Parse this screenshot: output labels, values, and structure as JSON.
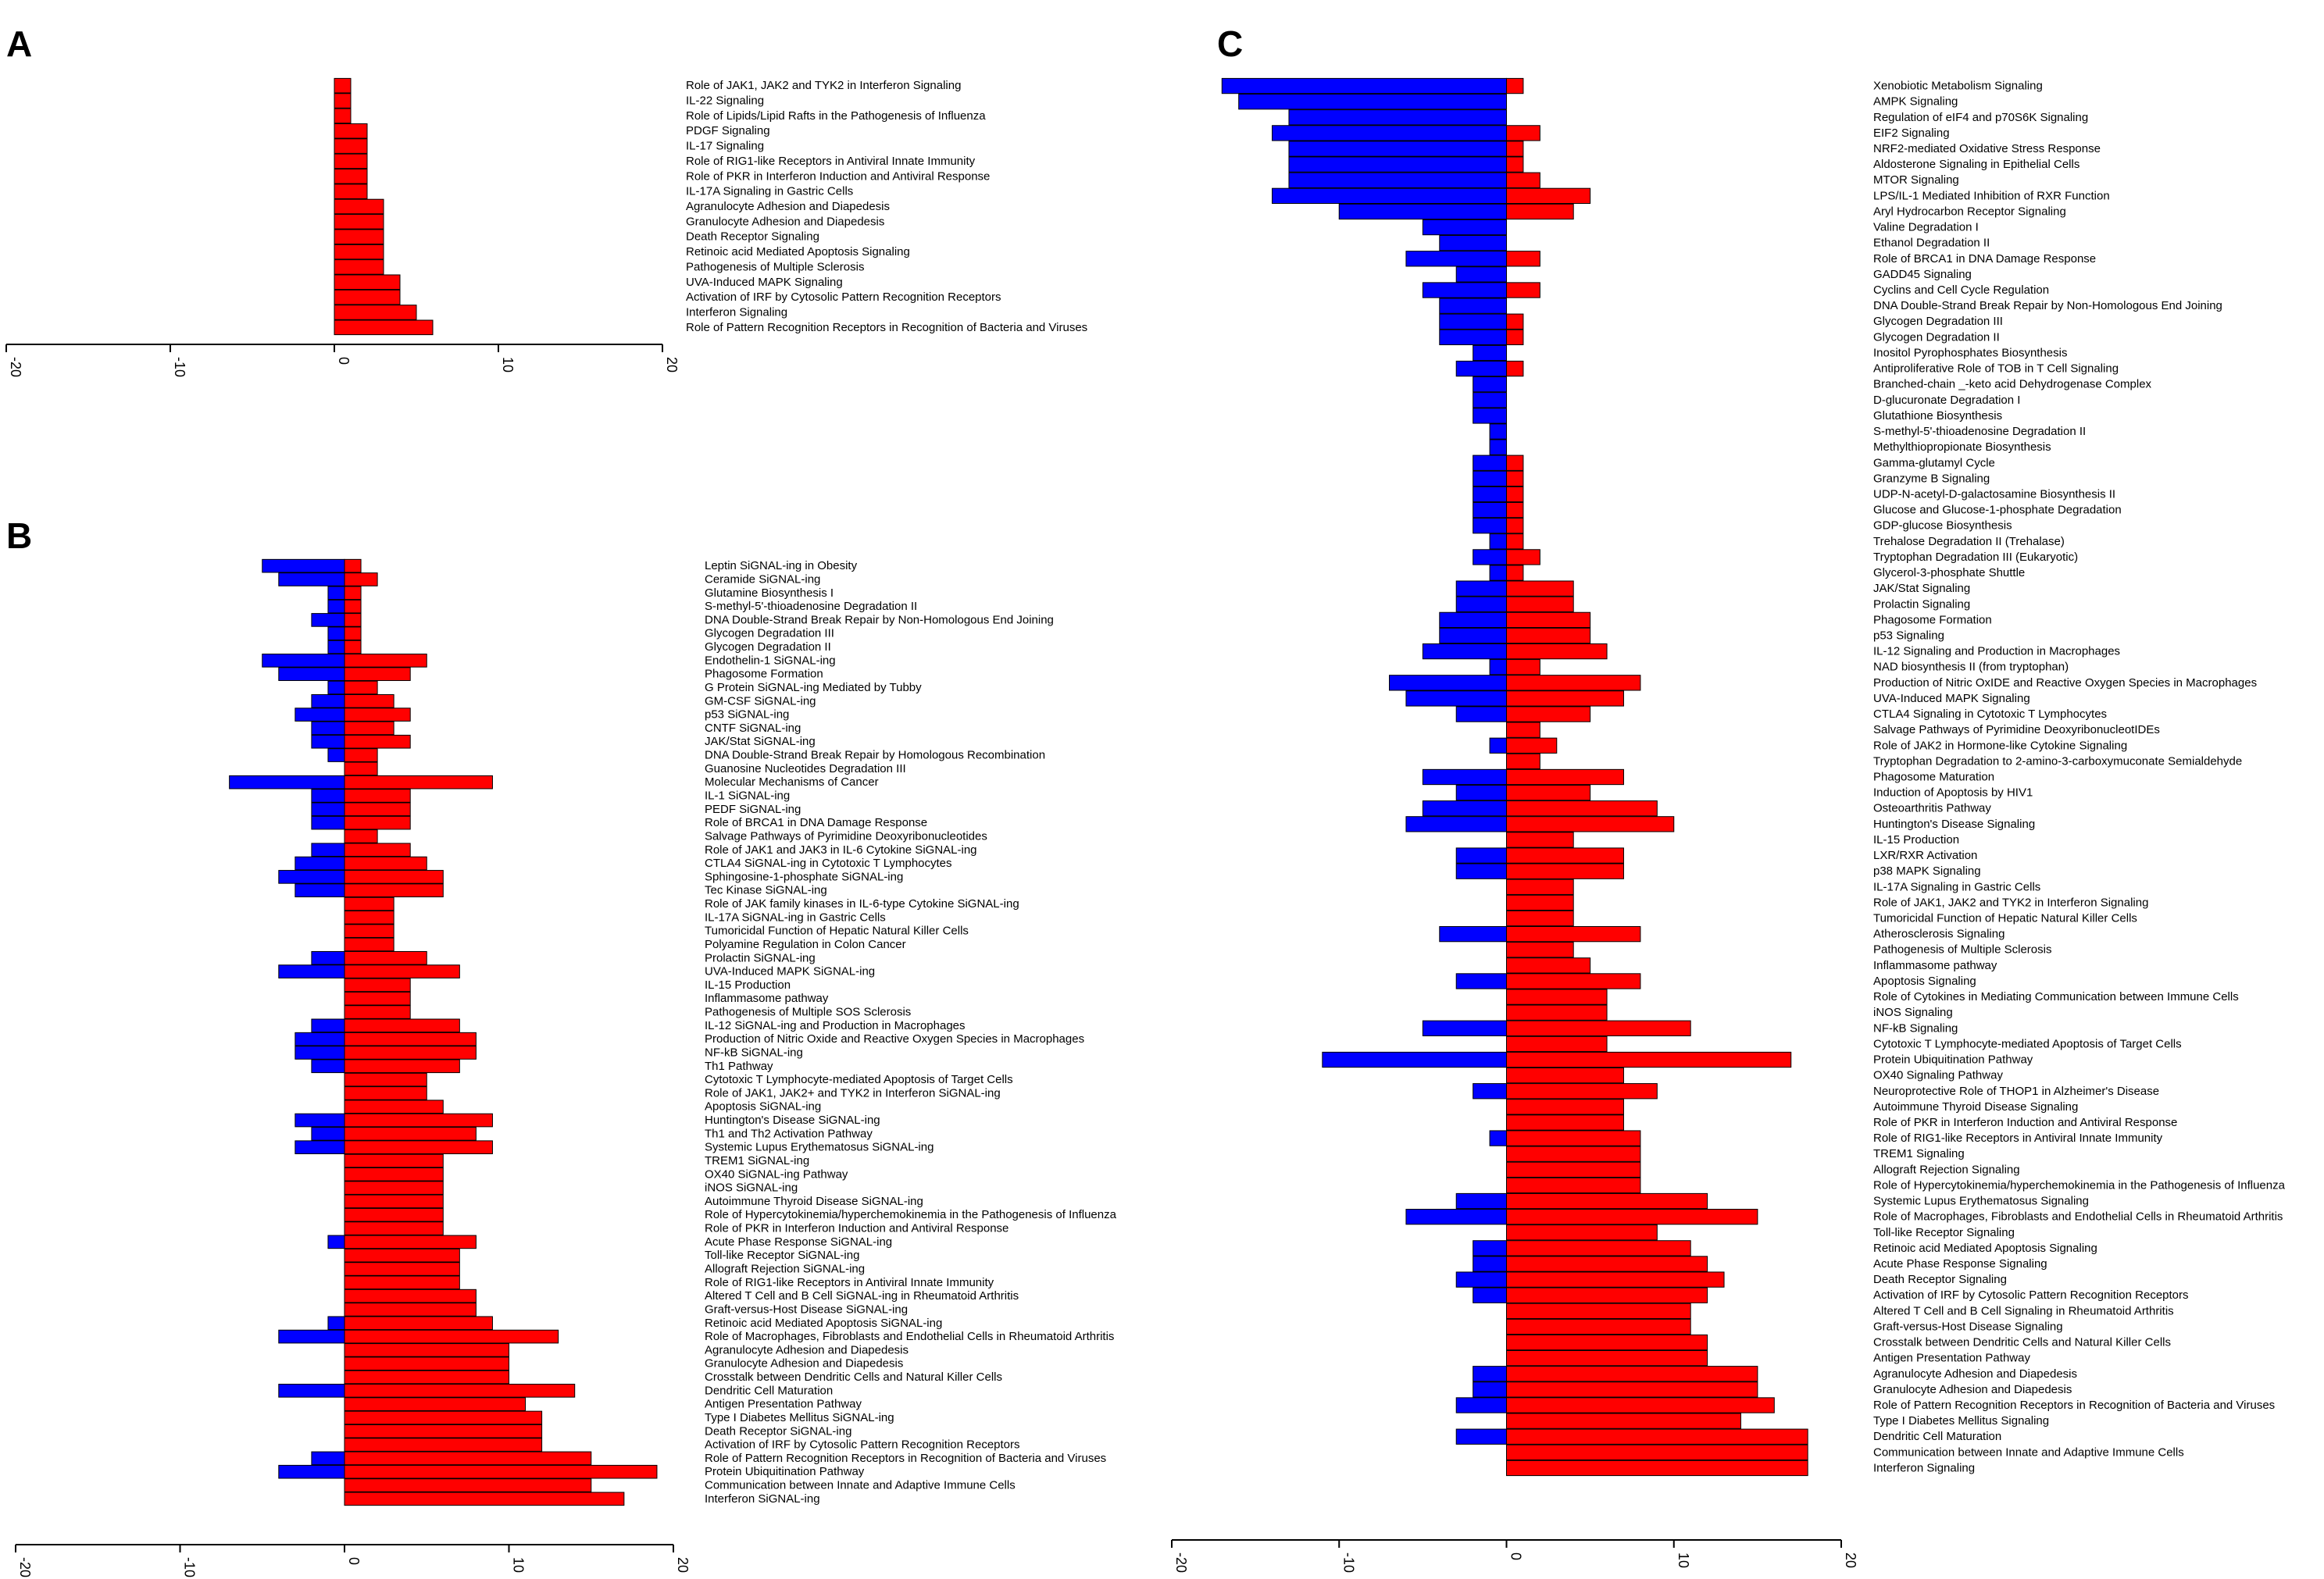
{
  "colors": {
    "negative": "#0000ff",
    "positive": "#ff0000"
  },
  "chart_data": [
    {
      "panel": "A",
      "type": "bar",
      "orientation": "horizontal",
      "xlim": [
        -20,
        20
      ],
      "xticks": [
        -20,
        -10,
        0,
        10,
        20
      ],
      "categories": [
        "Role of JAK1, JAK2 and TYK2 in Interferon Signaling",
        "IL-22 Signaling",
        "Role of Lipids/Lipid Rafts in the Pathogenesis of Influenza",
        "PDGF Signaling",
        "IL-17 Signaling",
        "Role of RIG1-like Receptors in Antiviral Innate Immunity",
        "Role of PKR in Interferon Induction and Antiviral Response",
        "IL-17A Signaling in Gastric Cells",
        "Agranulocyte Adhesion and Diapedesis",
        "Granulocyte Adhesion and Diapedesis",
        "Death Receptor Signaling",
        "Retinoic acid Mediated Apoptosis Signaling",
        "Pathogenesis of Multiple Sclerosis",
        "UVA-Induced MAPK Signaling",
        "Activation of IRF by Cytosolic Pattern Recognition Receptors",
        "Interferon Signaling",
        "Role of Pattern Recognition Receptors in Recognition of Bacteria and Viruses"
      ],
      "series": [
        {
          "values": [
            0,
            0,
            0,
            0,
            0,
            0,
            0,
            0,
            0,
            0,
            0,
            0,
            0,
            0,
            0,
            0,
            0
          ]
        },
        {
          "values": [
            1,
            1,
            1,
            2,
            2,
            2,
            2,
            2,
            3,
            3,
            3,
            3,
            3,
            4,
            4,
            5,
            6
          ]
        }
      ]
    },
    {
      "panel": "B",
      "type": "bar",
      "orientation": "horizontal",
      "xlim": [
        -20,
        20
      ],
      "xticks": [
        -20,
        -10,
        0,
        10,
        20
      ],
      "categories": [
        "Leptin SiGNAL-ing in Obesity",
        "Ceramide SiGNAL-ing",
        "Glutamine Biosynthesis I",
        "S-methyl-5'-thioadenosine Degradation II",
        "DNA Double-Strand Break Repair by Non-Homologous End Joining",
        "Glycogen Degradation III",
        "Glycogen Degradation II",
        "Endothelin-1 SiGNAL-ing",
        "Phagosome Formation",
        "G Protein SiGNAL-ing Mediated by Tubby",
        "GM-CSF SiGNAL-ing",
        "p53 SiGNAL-ing",
        "CNTF SiGNAL-ing",
        "JAK/Stat SiGNAL-ing",
        "DNA Double-Strand Break Repair by Homologous Recombination",
        "Guanosine Nucleotides Degradation III",
        "Molecular Mechanisms of Cancer",
        "IL-1 SiGNAL-ing",
        "PEDF SiGNAL-ing",
        "Role of BRCA1 in DNA Damage Response",
        "Salvage Pathways of Pyrimidine Deoxyribonucleotides",
        "Role of JAK1 and JAK3 in IL-6 Cytokine SiGNAL-ing",
        "CTLA4 SiGNAL-ing in Cytotoxic T Lymphocytes",
        "Sphingosine-1-phosphate SiGNAL-ing",
        "Tec Kinase SiGNAL-ing",
        "Role of JAK family kinases in IL-6-type Cytokine SiGNAL-ing",
        "IL-17A SiGNAL-ing in Gastric Cells",
        "Tumoricidal Function of Hepatic Natural Killer Cells",
        "Polyamine Regulation in Colon Cancer",
        "Prolactin SiGNAL-ing",
        "UVA-Induced MAPK SiGNAL-ing",
        "IL-15 Production",
        "Inflammasome pathway",
        "Pathogenesis of Multiple SOS Sclerosis",
        "IL-12 SiGNAL-ing and Production in Macrophages",
        "Production of Nitric Oxide and Reactive Oxygen Species in Macrophages",
        "NF-kB SiGNAL-ing",
        "Th1 Pathway",
        "Cytotoxic T Lymphocyte-mediated Apoptosis of Target Cells",
        "Role of JAK1, JAK2+ and TYK2 in Interferon SiGNAL-ing",
        "Apoptosis SiGNAL-ing",
        "Huntington's Disease SiGNAL-ing",
        "Th1 and Th2 Activation Pathway",
        "Systemic Lupus Erythematosus SiGNAL-ing",
        "TREM1 SiGNAL-ing",
        "OX40 SiGNAL-ing Pathway",
        "iNOS SiGNAL-ing",
        "Autoimmune Thyroid Disease SiGNAL-ing",
        "Role of Hypercytokinemia/hyperchemokinemia in the Pathogenesis of Influenza",
        "Role of PKR in Interferon Induction and Antiviral Response",
        "Acute Phase Response SiGNAL-ing",
        "Toll-like Receptor SiGNAL-ing",
        "Allograft Rejection SiGNAL-ing",
        "Role of RIG1-like Receptors in Antiviral Innate Immunity",
        "Altered T Cell and B Cell SiGNAL-ing in Rheumatoid Arthritis",
        "Graft-versus-Host Disease SiGNAL-ing",
        "Retinoic acid Mediated Apoptosis SiGNAL-ing",
        "Role of Macrophages, Fibroblasts and Endothelial Cells in Rheumatoid Arthritis",
        "Agranulocyte Adhesion and Diapedesis",
        "Granulocyte Adhesion and Diapedesis",
        "Crosstalk between Dendritic Cells and Natural Killer Cells",
        "Dendritic Cell Maturation",
        "Antigen Presentation Pathway",
        "Type I Diabetes Mellitus SiGNAL-ing",
        "Death Receptor SiGNAL-ing",
        "Activation of IRF by Cytosolic Pattern Recognition Receptors",
        "Role of Pattern Recognition Receptors in Recognition of Bacteria and Viruses",
        "Protein Ubiquitination Pathway",
        "Communication between Innate and Adaptive Immune Cells",
        "Interferon SiGNAL-ing"
      ],
      "series": [
        {
          "values": [
            -5,
            -4,
            -1,
            -1,
            -2,
            -1,
            -1,
            -5,
            -4,
            -1,
            -2,
            -3,
            -2,
            -2,
            -1,
            0,
            -7,
            -2,
            -2,
            -2,
            0,
            -2,
            -3,
            -4,
            -3,
            0,
            0,
            0,
            0,
            -2,
            -4,
            0,
            0,
            0,
            -2,
            -3,
            -3,
            -2,
            0,
            0,
            0,
            -3,
            -2,
            -3,
            0,
            0,
            0,
            0,
            0,
            0,
            -1,
            0,
            0,
            0,
            0,
            0,
            -1,
            -4,
            0,
            0,
            0,
            -4,
            0,
            0,
            0,
            0,
            -2,
            -4,
            0,
            0
          ]
        },
        {
          "values": [
            1,
            2,
            1,
            1,
            1,
            1,
            1,
            5,
            4,
            2,
            3,
            4,
            3,
            4,
            2,
            2,
            9,
            4,
            4,
            4,
            2,
            4,
            5,
            6,
            6,
            3,
            3,
            3,
            3,
            5,
            7,
            4,
            4,
            4,
            7,
            8,
            8,
            7,
            5,
            5,
            6,
            9,
            8,
            9,
            6,
            6,
            6,
            6,
            6,
            6,
            8,
            7,
            7,
            7,
            8,
            8,
            9,
            13,
            10,
            10,
            10,
            14,
            11,
            12,
            12,
            12,
            15,
            19,
            15,
            17
          ]
        }
      ]
    },
    {
      "panel": "C",
      "type": "bar",
      "orientation": "horizontal",
      "xlim": [
        -20,
        20
      ],
      "xticks": [
        -20,
        -10,
        0,
        10,
        20
      ],
      "categories": [
        "Xenobiotic Metabolism Signaling",
        "AMPK Signaling",
        "Regulation of eIF4 and p70S6K Signaling",
        "EIF2 Signaling",
        "NRF2-mediated Oxidative Stress Response",
        "Aldosterone Signaling in Epithelial Cells",
        "MTOR Signaling",
        "LPS/IL-1 Mediated Inhibition of RXR Function",
        "Aryl Hydrocarbon Receptor Signaling",
        "Valine Degradation I",
        "Ethanol Degradation II",
        "Role of BRCA1 in DNA Damage Response",
        "GADD45 Signaling",
        "Cyclins and Cell Cycle Regulation",
        "DNA Double-Strand Break Repair by Non-Homologous End Joining",
        "Glycogen Degradation III",
        "Glycogen Degradation II",
        "Inositol Pyrophosphates Biosynthesis",
        "Antiproliferative Role of TOB in T Cell Signaling",
        "Branched-chain _-keto acid Dehydrogenase Complex",
        "D-glucuronate Degradation I",
        "Glutathione Biosynthesis",
        "S-methyl-5'-thioadenosine Degradation II",
        "Methylthiopropionate Biosynthesis",
        "Gamma-glutamyl Cycle",
        "Granzyme B Signaling",
        "UDP-N-acetyl-D-galactosamine Biosynthesis II",
        "Glucose and Glucose-1-phosphate Degradation",
        "GDP-glucose Biosynthesis",
        "Trehalose Degradation II (Trehalase)",
        "Tryptophan Degradation III (Eukaryotic)",
        "Glycerol-3-phosphate Shuttle",
        "JAK/Stat Signaling",
        "Prolactin Signaling",
        "Phagosome Formation",
        "p53 Signaling",
        "IL-12 Signaling and Production in Macrophages",
        "NAD biosynthesis II (from tryptophan)",
        "Production of Nitric OxIDE and Reactive Oxygen Species in Macrophages",
        "UVA-Induced MAPK Signaling",
        "CTLA4 Signaling in Cytotoxic T Lymphocytes",
        "Salvage Pathways of Pyrimidine DeoxyribonucleotIDEs",
        "Role of JAK2 in Hormone-like Cytokine Signaling",
        "Tryptophan Degradation to 2-amino-3-carboxymuconate Semialdehyde",
        "Phagosome Maturation",
        "Induction of Apoptosis by HIV1",
        "Osteoarthritis Pathway",
        "Huntington's Disease Signaling",
        "IL-15 Production",
        "LXR/RXR Activation",
        "p38 MAPK Signaling",
        "IL-17A Signaling in Gastric Cells",
        "Role of JAK1, JAK2 and TYK2 in Interferon Signaling",
        "Tumoricidal Function of Hepatic Natural Killer Cells",
        "Atherosclerosis Signaling",
        "Pathogenesis of Multiple Sclerosis",
        "Inflammasome pathway",
        "Apoptosis Signaling",
        "Role of Cytokines in Mediating Communication between Immune Cells",
        "iNOS Signaling",
        "NF-kB Signaling",
        "Cytotoxic T Lymphocyte-mediated Apoptosis of Target Cells",
        "Protein Ubiquitination Pathway",
        "OX40 Signaling Pathway",
        "Neuroprotective Role of THOP1 in Alzheimer's Disease",
        "Autoimmune Thyroid Disease Signaling",
        "Role of PKR in Interferon Induction and Antiviral Response",
        "Role of RIG1-like Receptors in Antiviral Innate Immunity",
        "TREM1 Signaling",
        "Allograft Rejection Signaling",
        "Role of Hypercytokinemia/hyperchemokinemia in the Pathogenesis of Influenza",
        "Systemic Lupus Erythematosus Signaling",
        "Role of Macrophages, Fibroblasts and Endothelial Cells in Rheumatoid Arthritis",
        "Toll-like Receptor Signaling",
        "Retinoic acid Mediated Apoptosis Signaling",
        "Acute Phase Response Signaling",
        "Death Receptor Signaling",
        "Activation of IRF by Cytosolic Pattern Recognition Receptors",
        "Altered T Cell and B Cell Signaling in Rheumatoid Arthritis",
        "Graft-versus-Host Disease Signaling",
        "Crosstalk between Dendritic Cells and Natural Killer Cells",
        "Antigen Presentation Pathway",
        "Agranulocyte Adhesion and Diapedesis",
        "Granulocyte Adhesion and Diapedesis",
        "Role of Pattern Recognition Receptors in Recognition of Bacteria and Viruses",
        "Type I Diabetes Mellitus Signaling",
        "Dendritic Cell Maturation",
        "Communication between Innate and Adaptive Immune Cells",
        "Interferon Signaling"
      ],
      "series": [
        {
          "values": [
            -17,
            -16,
            -13,
            -14,
            -13,
            -13,
            -13,
            -14,
            -10,
            -5,
            -4,
            -6,
            -3,
            -5,
            -4,
            -4,
            -4,
            -2,
            -3,
            -2,
            -2,
            -2,
            -1,
            -1,
            -2,
            -2,
            -2,
            -2,
            -2,
            -1,
            -2,
            -1,
            -3,
            -3,
            -4,
            -4,
            -5,
            -1,
            -7,
            -6,
            -3,
            0,
            -1,
            0,
            -5,
            -3,
            -5,
            -6,
            0,
            -3,
            -3,
            0,
            0,
            0,
            -4,
            0,
            0,
            -3,
            0,
            0,
            -5,
            0,
            -11,
            0,
            -2,
            0,
            0,
            -1,
            0,
            0,
            0,
            -3,
            -6,
            0,
            -2,
            -2,
            -3,
            -2,
            0,
            0,
            0,
            0,
            -2,
            -2,
            -3,
            0,
            -3,
            0,
            0
          ]
        },
        {
          "values": [
            1,
            0,
            0,
            2,
            1,
            1,
            2,
            5,
            4,
            0,
            0,
            2,
            0,
            2,
            0,
            1,
            1,
            0,
            1,
            0,
            0,
            0,
            0,
            0,
            1,
            1,
            1,
            1,
            1,
            1,
            2,
            1,
            4,
            4,
            5,
            5,
            6,
            2,
            8,
            7,
            5,
            2,
            3,
            2,
            7,
            5,
            9,
            10,
            4,
            7,
            7,
            4,
            4,
            4,
            8,
            4,
            5,
            8,
            6,
            6,
            11,
            6,
            17,
            7,
            9,
            7,
            7,
            8,
            8,
            8,
            8,
            12,
            15,
            9,
            11,
            12,
            13,
            12,
            11,
            11,
            12,
            12,
            15,
            15,
            16,
            14,
            18,
            18,
            18
          ]
        }
      ]
    }
  ]
}
